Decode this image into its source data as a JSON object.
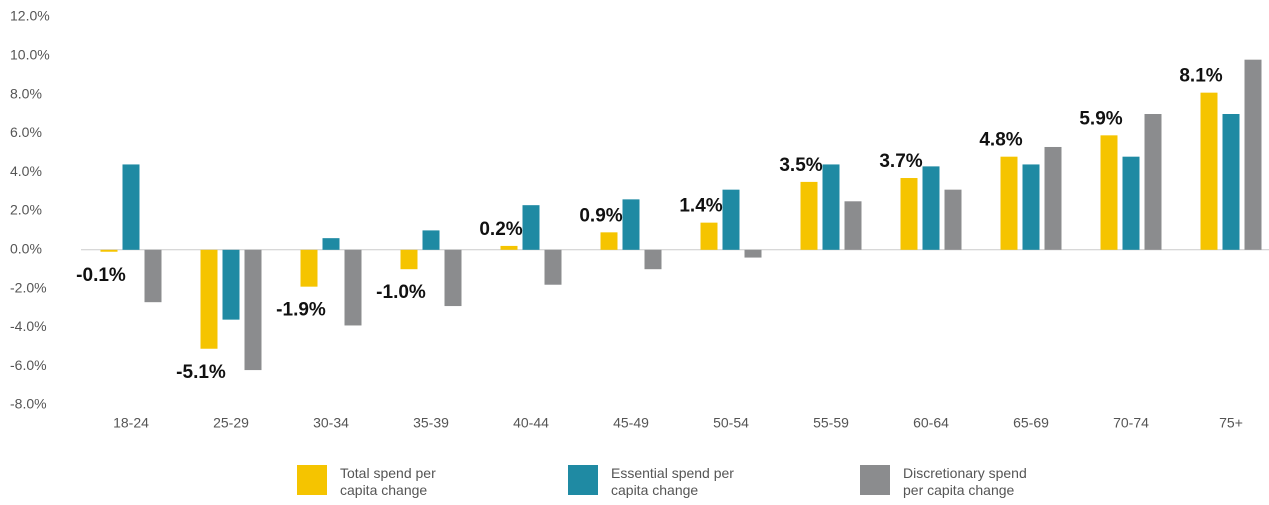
{
  "chart_data": {
    "type": "bar",
    "categories": [
      "18-24",
      "25-29",
      "30-34",
      "35-39",
      "40-44",
      "45-49",
      "50-54",
      "55-59",
      "60-64",
      "65-69",
      "70-74",
      "75+"
    ],
    "series": [
      {
        "name": "Total spend per capita change",
        "color": "#f5c400",
        "values": [
          -0.1,
          -5.1,
          -1.9,
          -1.0,
          0.2,
          0.9,
          1.4,
          3.5,
          3.7,
          4.8,
          5.9,
          8.1
        ],
        "value_labels": [
          "-0.1%",
          "-5.1%",
          "-1.9%",
          "-1.0%",
          "0.2%",
          "0.9%",
          "1.4%",
          "3.5%",
          "3.7%",
          "4.8%",
          "5.9%",
          "8.1%"
        ]
      },
      {
        "name": "Essential spend per capita change",
        "color": "#1f8aa3",
        "values": [
          4.4,
          -3.6,
          0.6,
          1.0,
          2.3,
          2.6,
          3.1,
          4.4,
          4.3,
          4.4,
          4.8,
          7.0
        ]
      },
      {
        "name": "Discretionary spend per capita change",
        "color": "#8b8c8e",
        "values": [
          -2.7,
          -6.2,
          -3.9,
          -2.9,
          -1.8,
          -1.0,
          -0.4,
          2.5,
          3.1,
          5.3,
          7.0,
          9.8
        ]
      }
    ],
    "ylim": [
      -8,
      12
    ],
    "yticks": [
      {
        "value": -8,
        "label": "-8.0%"
      },
      {
        "value": -6,
        "label": "-6.0%"
      },
      {
        "value": -4,
        "label": "-4.0%"
      },
      {
        "value": -2,
        "label": "-2.0%"
      },
      {
        "value": 0,
        "label": "0.0%"
      },
      {
        "value": 2,
        "label": "2.0%"
      },
      {
        "value": 4,
        "label": "4.0%"
      },
      {
        "value": 6,
        "label": "6.0%"
      },
      {
        "value": 8,
        "label": "8.0%"
      },
      {
        "value": 10,
        "label": "10.0%"
      },
      {
        "value": 12,
        "label": "12.0%"
      }
    ],
    "legend": "bottom"
  }
}
